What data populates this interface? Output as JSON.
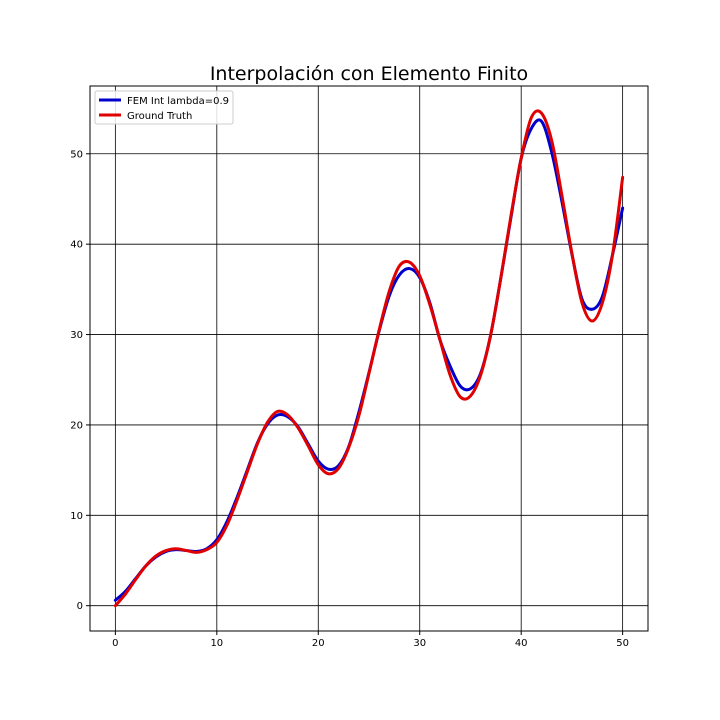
{
  "chart_data": {
    "type": "line",
    "title": "Interpolación con Elemento Finito",
    "xlabel": "",
    "ylabel": "",
    "xlim": [
      -2.5,
      52.5
    ],
    "ylim": [
      -2.8,
      57.5
    ],
    "x_ticks": [
      0,
      10,
      20,
      30,
      40,
      50
    ],
    "y_ticks": [
      0,
      10,
      20,
      30,
      40,
      50
    ],
    "grid": true,
    "legend_position": "top-left",
    "series": [
      {
        "name": "FEM Int lambda=0.9",
        "color": "#0000cc",
        "x": [
          0,
          1,
          2,
          3,
          4,
          5,
          6,
          7,
          8,
          9,
          10,
          11,
          12,
          13,
          14,
          15,
          16,
          17,
          18,
          19,
          20,
          21,
          22,
          23,
          24,
          25,
          26,
          27,
          28,
          29,
          30,
          31,
          32,
          33,
          34,
          35,
          36,
          37,
          38,
          39,
          40,
          41,
          42,
          43,
          44,
          45,
          46,
          47,
          48,
          49,
          50
        ],
        "y": [
          0.6,
          1.6,
          3.0,
          4.4,
          5.4,
          6.0,
          6.2,
          6.1,
          6.0,
          6.3,
          7.3,
          9.3,
          12.0,
          15.0,
          18.0,
          20.1,
          21.1,
          20.9,
          19.8,
          17.9,
          16.0,
          15.1,
          15.5,
          17.6,
          21.4,
          25.8,
          30.4,
          34.3,
          36.6,
          37.3,
          36.3,
          33.5,
          29.4,
          26.5,
          24.3,
          24.0,
          25.7,
          30.0,
          36.3,
          43.0,
          49.5,
          52.8,
          53.6,
          50.2,
          44.8,
          38.9,
          33.9,
          32.8,
          34.2,
          38.8,
          44.0
        ]
      },
      {
        "name": "Ground Truth",
        "color": "#e00000",
        "x": [
          0,
          1,
          2,
          3,
          4,
          5,
          6,
          7,
          8,
          9,
          10,
          11,
          12,
          13,
          14,
          15,
          16,
          17,
          18,
          19,
          20,
          21,
          22,
          23,
          24,
          25,
          26,
          27,
          28,
          29,
          30,
          31,
          32,
          33,
          34,
          35,
          36,
          37,
          38,
          39,
          40,
          41,
          42,
          43,
          44,
          45,
          46,
          47,
          48,
          49,
          50
        ],
        "y": [
          0.0,
          1.3,
          2.9,
          4.4,
          5.5,
          6.1,
          6.3,
          6.1,
          5.9,
          6.2,
          7.0,
          8.9,
          11.7,
          14.8,
          17.9,
          20.3,
          21.5,
          21.1,
          19.7,
          17.7,
          15.6,
          14.6,
          15.2,
          17.5,
          21.0,
          25.7,
          30.5,
          34.8,
          37.6,
          38.0,
          36.5,
          33.3,
          29.4,
          25.5,
          23.1,
          23.2,
          25.5,
          30.0,
          36.3,
          43.2,
          49.5,
          54.0,
          54.5,
          51.5,
          45.5,
          39.0,
          33.5,
          31.5,
          33.5,
          38.8,
          47.4
        ]
      }
    ]
  }
}
